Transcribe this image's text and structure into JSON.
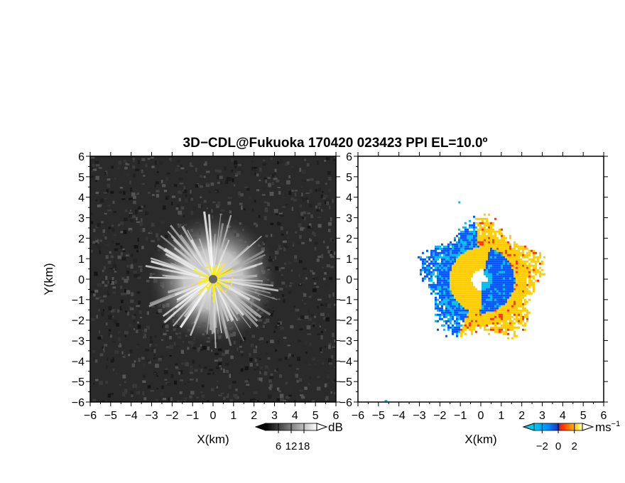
{
  "title": "3D−CDL@Fukuoka 170420 023423 PPI EL=10.0º",
  "chart_data": [
    {
      "type": "heatmap",
      "name": "reflectivity",
      "xlabel": "X(km)",
      "ylabel": "Y(km)",
      "xlim": [
        -6,
        6
      ],
      "ylim": [
        -6,
        6
      ],
      "xticks": [
        "−6",
        "−5",
        "−4",
        "−3",
        "−2",
        "−1",
        "0",
        "1",
        "2",
        "3",
        "4",
        "5",
        "6"
      ],
      "yticks": [
        "6",
        "5",
        "4",
        "3",
        "2",
        "1",
        "0",
        "−1",
        "−2",
        "−3",
        "−4",
        "−5",
        "−6"
      ],
      "colorbar": {
        "unit": "dB",
        "ticks": [
          "6",
          "12",
          "18"
        ],
        "range": [
          0,
          24
        ],
        "colors": [
          "#000000",
          "#ffffff"
        ]
      },
      "center_marker": {
        "color": "#666666"
      },
      "highlight_color": "#ffee00"
    },
    {
      "type": "heatmap",
      "name": "radial-velocity",
      "xlabel": "X(km)",
      "ylabel": "",
      "xlim": [
        -6,
        6
      ],
      "ylim": [
        -6,
        6
      ],
      "xticks": [
        "−6",
        "−5",
        "−4",
        "−3",
        "−2",
        "−1",
        "0",
        "1",
        "2",
        "3",
        "4",
        "5",
        "6"
      ],
      "yticks": [
        "6",
        "5",
        "4",
        "3",
        "2",
        "1",
        "0",
        "−1",
        "−2",
        "−3",
        "−4",
        "−5",
        "−6"
      ],
      "colorbar": {
        "unit": "ms",
        "unit_exp": "−1",
        "ticks": [
          "−2",
          "0",
          "2"
        ],
        "range": [
          -3,
          3
        ],
        "colors": [
          "#00bbee",
          "#0055ff",
          "#ff3300",
          "#ffcc00",
          "#ffffff"
        ]
      }
    }
  ]
}
